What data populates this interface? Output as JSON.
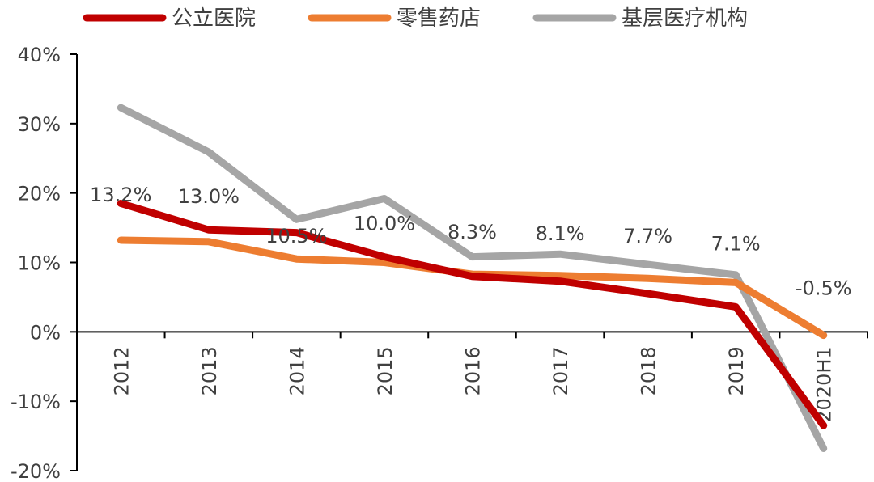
{
  "chart_data": {
    "type": "line",
    "categories": [
      "2012",
      "2013",
      "2014",
      "2015",
      "2016",
      "2017",
      "2018",
      "2019",
      "2020H1"
    ],
    "ylim": [
      -20,
      40
    ],
    "y_ticks": [
      "40%",
      "30%",
      "20%",
      "10%",
      "0%",
      "-10%",
      "-20%"
    ],
    "grid": false,
    "legend_position": "top",
    "series": [
      {
        "name": "公立医院",
        "color": "#c00000",
        "values": [
          18.5,
          14.7,
          14.3,
          10.8,
          8.0,
          7.3,
          5.5,
          3.6,
          -13.5
        ]
      },
      {
        "name": "零售药店",
        "color": "#ed7d31",
        "values": [
          13.2,
          13.0,
          10.5,
          10.0,
          8.3,
          8.1,
          7.7,
          7.1,
          -0.5
        ]
      },
      {
        "name": "基层医疗机构",
        "color": "#a5a5a5",
        "values": [
          32.3,
          25.9,
          16.2,
          19.2,
          10.8,
          11.2,
          9.7,
          8.2,
          -16.8
        ]
      }
    ],
    "data_labels": [
      "13.2%",
      "13.0%",
      "10.5%",
      "10.0%",
      "8.3%",
      "8.1%",
      "7.7%",
      "7.1%",
      "-0.5%"
    ]
  }
}
